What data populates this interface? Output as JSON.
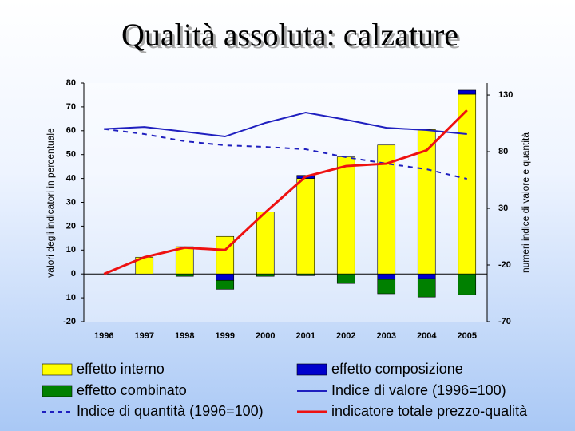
{
  "chart_data": {
    "type": "bar",
    "title": "Qualità assoluta: calzature",
    "ylabel": "valori degli indicatori in percentuale",
    "y2label": "numeri indice di valore e quantità",
    "categories": [
      "1996",
      "1997",
      "1998",
      "1999",
      "2000",
      "2001",
      "2002",
      "2003",
      "2004",
      "2005"
    ],
    "ylim": [
      -20,
      80
    ],
    "yticks": [
      80,
      70,
      60,
      50,
      40,
      30,
      20,
      10,
      0,
      {
        "value": -10,
        "label": "10"
      },
      -20
    ],
    "y2lim": [
      -70,
      140.6
    ],
    "y2ticks": [
      130,
      80,
      30,
      -20,
      -70
    ],
    "series": [
      {
        "name": "effetto interno",
        "type": "bar",
        "color": "#ffff00",
        "values": [
          0,
          7,
          11.4,
          15.7,
          26,
          40,
          49,
          54,
          60.5,
          75.3
        ]
      },
      {
        "name": "effetto composizione",
        "type": "bar",
        "color": "#0000cc",
        "values": [
          0,
          0,
          0,
          -2.7,
          0,
          1.3,
          0,
          -2.3,
          -2,
          1.7
        ]
      },
      {
        "name": "effetto combinato",
        "type": "bar",
        "color": "#008000",
        "values": [
          0,
          0,
          -1,
          -3.7,
          -1,
          -0.7,
          -4,
          -6,
          -7.7,
          -8.7
        ]
      },
      {
        "name": "Indice di valore (1996=100)",
        "type": "line",
        "axis": "y2",
        "color": "#1f1fbf",
        "values": [
          100,
          101.8,
          97.6,
          93.4,
          105.4,
          114.5,
          108.2,
          101.1,
          99,
          95.5
        ]
      },
      {
        "name": "Indice di quantità (1996=100)",
        "type": "line",
        "axis": "y2",
        "dashed": true,
        "color": "#1f1fbf",
        "values": [
          100,
          95.5,
          89.2,
          85.6,
          84.2,
          82.1,
          75.1,
          69.5,
          64.5,
          56
        ]
      },
      {
        "name": "indicatore totale prezzo-qualità",
        "type": "line",
        "color": "#ee1111",
        "values": [
          0,
          7,
          11,
          10,
          25.8,
          40.8,
          45.2,
          46.2,
          51.8,
          68.6
        ]
      }
    ]
  }
}
